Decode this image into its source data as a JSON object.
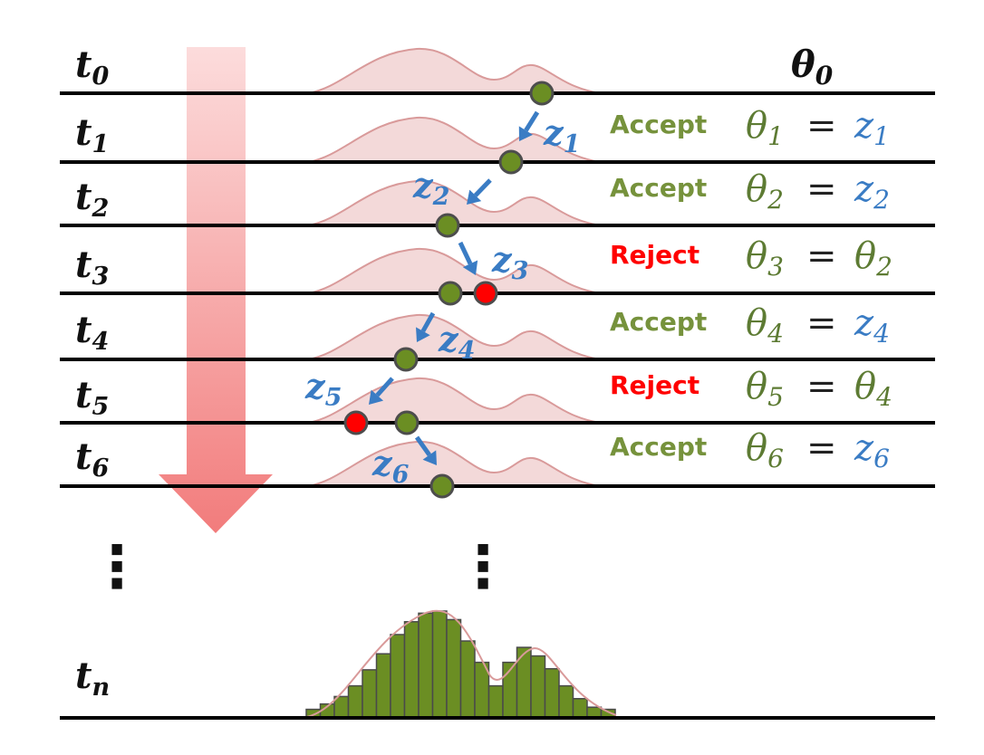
{
  "colors": {
    "accept": "#76923c",
    "reject": "#ff0000",
    "proposal": "#3a7cc4",
    "theta_green": "#5d7b33",
    "density_fill": "#f3d9d9",
    "density_line": "#d99a9a",
    "histogram": "#6b8e23",
    "timeline": "#000000",
    "arrow_top": "#fcdcdc",
    "arrow_bottom": "#f27c7c"
  },
  "time_labels": [
    {
      "base": "t",
      "sub": "0"
    },
    {
      "base": "t",
      "sub": "1"
    },
    {
      "base": "t",
      "sub": "2"
    },
    {
      "base": "t",
      "sub": "3"
    },
    {
      "base": "t",
      "sub": "4"
    },
    {
      "base": "t",
      "sub": "5"
    },
    {
      "base": "t",
      "sub": "6"
    },
    {
      "base": "t",
      "sub": "n"
    }
  ],
  "initial_state": {
    "base": "θ",
    "sub": "0"
  },
  "steps": [
    {
      "decision": "Accept",
      "lhs": {
        "base": "θ",
        "sub": "1"
      },
      "eq": "=",
      "rhs": {
        "base": "z",
        "sub": "1",
        "kind": "proposal"
      },
      "proposal": {
        "base": "z",
        "sub": "1"
      }
    },
    {
      "decision": "Accept",
      "lhs": {
        "base": "θ",
        "sub": "2"
      },
      "eq": "=",
      "rhs": {
        "base": "z",
        "sub": "2",
        "kind": "proposal"
      },
      "proposal": {
        "base": "z",
        "sub": "2"
      }
    },
    {
      "decision": "Reject",
      "lhs": {
        "base": "θ",
        "sub": "3"
      },
      "eq": "=",
      "rhs": {
        "base": "θ",
        "sub": "2",
        "kind": "state"
      },
      "proposal": {
        "base": "z",
        "sub": "3"
      }
    },
    {
      "decision": "Accept",
      "lhs": {
        "base": "θ",
        "sub": "4"
      },
      "eq": "=",
      "rhs": {
        "base": "z",
        "sub": "4",
        "kind": "proposal"
      },
      "proposal": {
        "base": "z",
        "sub": "4"
      }
    },
    {
      "decision": "Reject",
      "lhs": {
        "base": "θ",
        "sub": "5"
      },
      "eq": "=",
      "rhs": {
        "base": "θ",
        "sub": "4",
        "kind": "state"
      },
      "proposal": {
        "base": "z",
        "sub": "5"
      }
    },
    {
      "decision": "Accept",
      "lhs": {
        "base": "θ",
        "sub": "6"
      },
      "eq": "=",
      "rhs": {
        "base": "z",
        "sub": "6",
        "kind": "proposal"
      },
      "proposal": {
        "base": "z",
        "sub": "6"
      }
    }
  ],
  "ellipsis": "⋮",
  "histogram_heights": [
    0.08,
    0.13,
    0.2,
    0.3,
    0.45,
    0.6,
    0.78,
    0.9,
    0.98,
    1.0,
    0.92,
    0.72,
    0.52,
    0.3,
    0.52,
    0.66,
    0.58,
    0.46,
    0.3,
    0.18,
    0.1,
    0.08
  ]
}
